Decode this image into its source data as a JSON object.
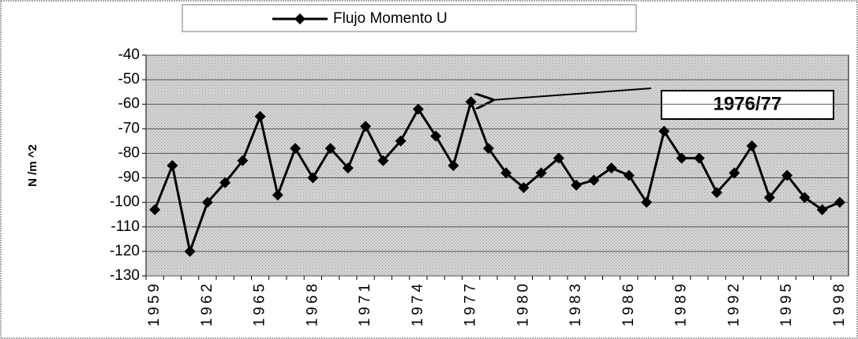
{
  "chart_data": {
    "type": "line",
    "y_label": "N /m ^2",
    "annotation": "1976/77",
    "categories": [
      "1959",
      null,
      null,
      "1962",
      null,
      null,
      "1965",
      null,
      null,
      "1968",
      null,
      null,
      "1971",
      null,
      null,
      "1974",
      null,
      null,
      "1977",
      null,
      null,
      "1980",
      null,
      null,
      "1983",
      null,
      null,
      "1986",
      null,
      null,
      "1989",
      null,
      null,
      "1992",
      null,
      null,
      "1995",
      null,
      null,
      "1998"
    ],
    "series": [
      {
        "name": "Flujo Momento U",
        "color": "#000000",
        "values": [
          -103,
          -85,
          -120,
          -100,
          -92,
          -83,
          -65,
          -97,
          -78,
          -90,
          -78,
          -86,
          -69,
          -83,
          -75,
          -62,
          -73,
          -85,
          -59,
          -78,
          -88,
          -94,
          -88,
          -82,
          -93,
          -91,
          -86,
          -89,
          -100,
          -71,
          -82,
          -82,
          -96,
          -88,
          -77,
          -98,
          -89,
          -98,
          -103,
          -100
        ]
      }
    ],
    "ylim": [
      -130,
      -40
    ],
    "yticks": [
      -40,
      -50,
      -60,
      -70,
      -80,
      -90,
      -100,
      -110,
      -120,
      -130
    ],
    "grid": true
  }
}
